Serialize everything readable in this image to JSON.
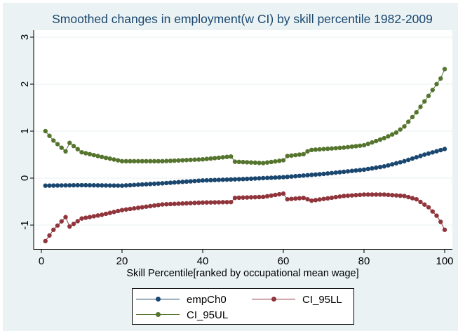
{
  "chart_data": {
    "type": "scatter",
    "title": "Smoothed changes in employment(w CI) by skill percentile 1982-2009",
    "xlabel": "Skill Percentile[ranked by occupational mean wage]",
    "ylabel": "",
    "xlim": [
      -1.5,
      102
    ],
    "ylim": [
      -1.5,
      3.15
    ],
    "xticks": [
      0,
      20,
      40,
      60,
      80,
      100
    ],
    "xtick_labels": [
      "0",
      "20",
      "40",
      "60",
      "80",
      "100"
    ],
    "yticks": [
      -1,
      0,
      1,
      2,
      3
    ],
    "ytick_labels": [
      "-1",
      "0",
      "1",
      "2",
      "3"
    ],
    "grid": true,
    "legend_position": "bottom",
    "legend": [
      "empCh0",
      "CI_95LL",
      "CI_95UL"
    ],
    "series": [
      {
        "name": "empCh0",
        "color": "#1a476f",
        "x_start": 1,
        "x_step": 1,
        "knots_x": [
          1,
          10,
          20,
          30,
          40,
          50,
          60,
          70,
          80,
          85,
          90,
          95,
          100
        ],
        "knots_y": [
          -0.16,
          -0.15,
          -0.16,
          -0.11,
          -0.05,
          -0.02,
          0.02,
          0.09,
          0.18,
          0.25,
          0.36,
          0.5,
          0.62
        ]
      },
      {
        "name": "CI_95LL",
        "color": "#90353b",
        "knots_x": [
          1,
          3,
          6,
          7,
          10,
          15,
          20,
          30,
          40,
          47,
          48,
          55,
          60,
          61,
          65,
          66,
          67,
          75,
          80,
          85,
          90,
          93,
          96,
          98,
          99,
          100
        ],
        "knots_y": [
          -1.34,
          -1.1,
          -0.83,
          -1.03,
          -0.86,
          -0.78,
          -0.68,
          -0.56,
          -0.52,
          -0.51,
          -0.42,
          -0.4,
          -0.33,
          -0.45,
          -0.42,
          -0.45,
          -0.48,
          -0.38,
          -0.35,
          -0.35,
          -0.38,
          -0.45,
          -0.62,
          -0.8,
          -0.93,
          -1.1
        ]
      },
      {
        "name": "CI_95UL",
        "color": "#55752f",
        "knots_x": [
          1,
          3,
          6,
          7,
          10,
          15,
          20,
          30,
          40,
          47,
          48,
          55,
          60,
          61,
          65,
          66,
          67,
          75,
          80,
          85,
          88,
          90,
          93,
          96,
          98,
          99,
          100
        ],
        "knots_y": [
          1.0,
          0.8,
          0.57,
          0.75,
          0.55,
          0.45,
          0.36,
          0.36,
          0.4,
          0.46,
          0.35,
          0.32,
          0.38,
          0.47,
          0.51,
          0.57,
          0.6,
          0.65,
          0.7,
          0.85,
          0.97,
          1.1,
          1.4,
          1.75,
          2.0,
          2.12,
          2.32
        ]
      }
    ]
  }
}
